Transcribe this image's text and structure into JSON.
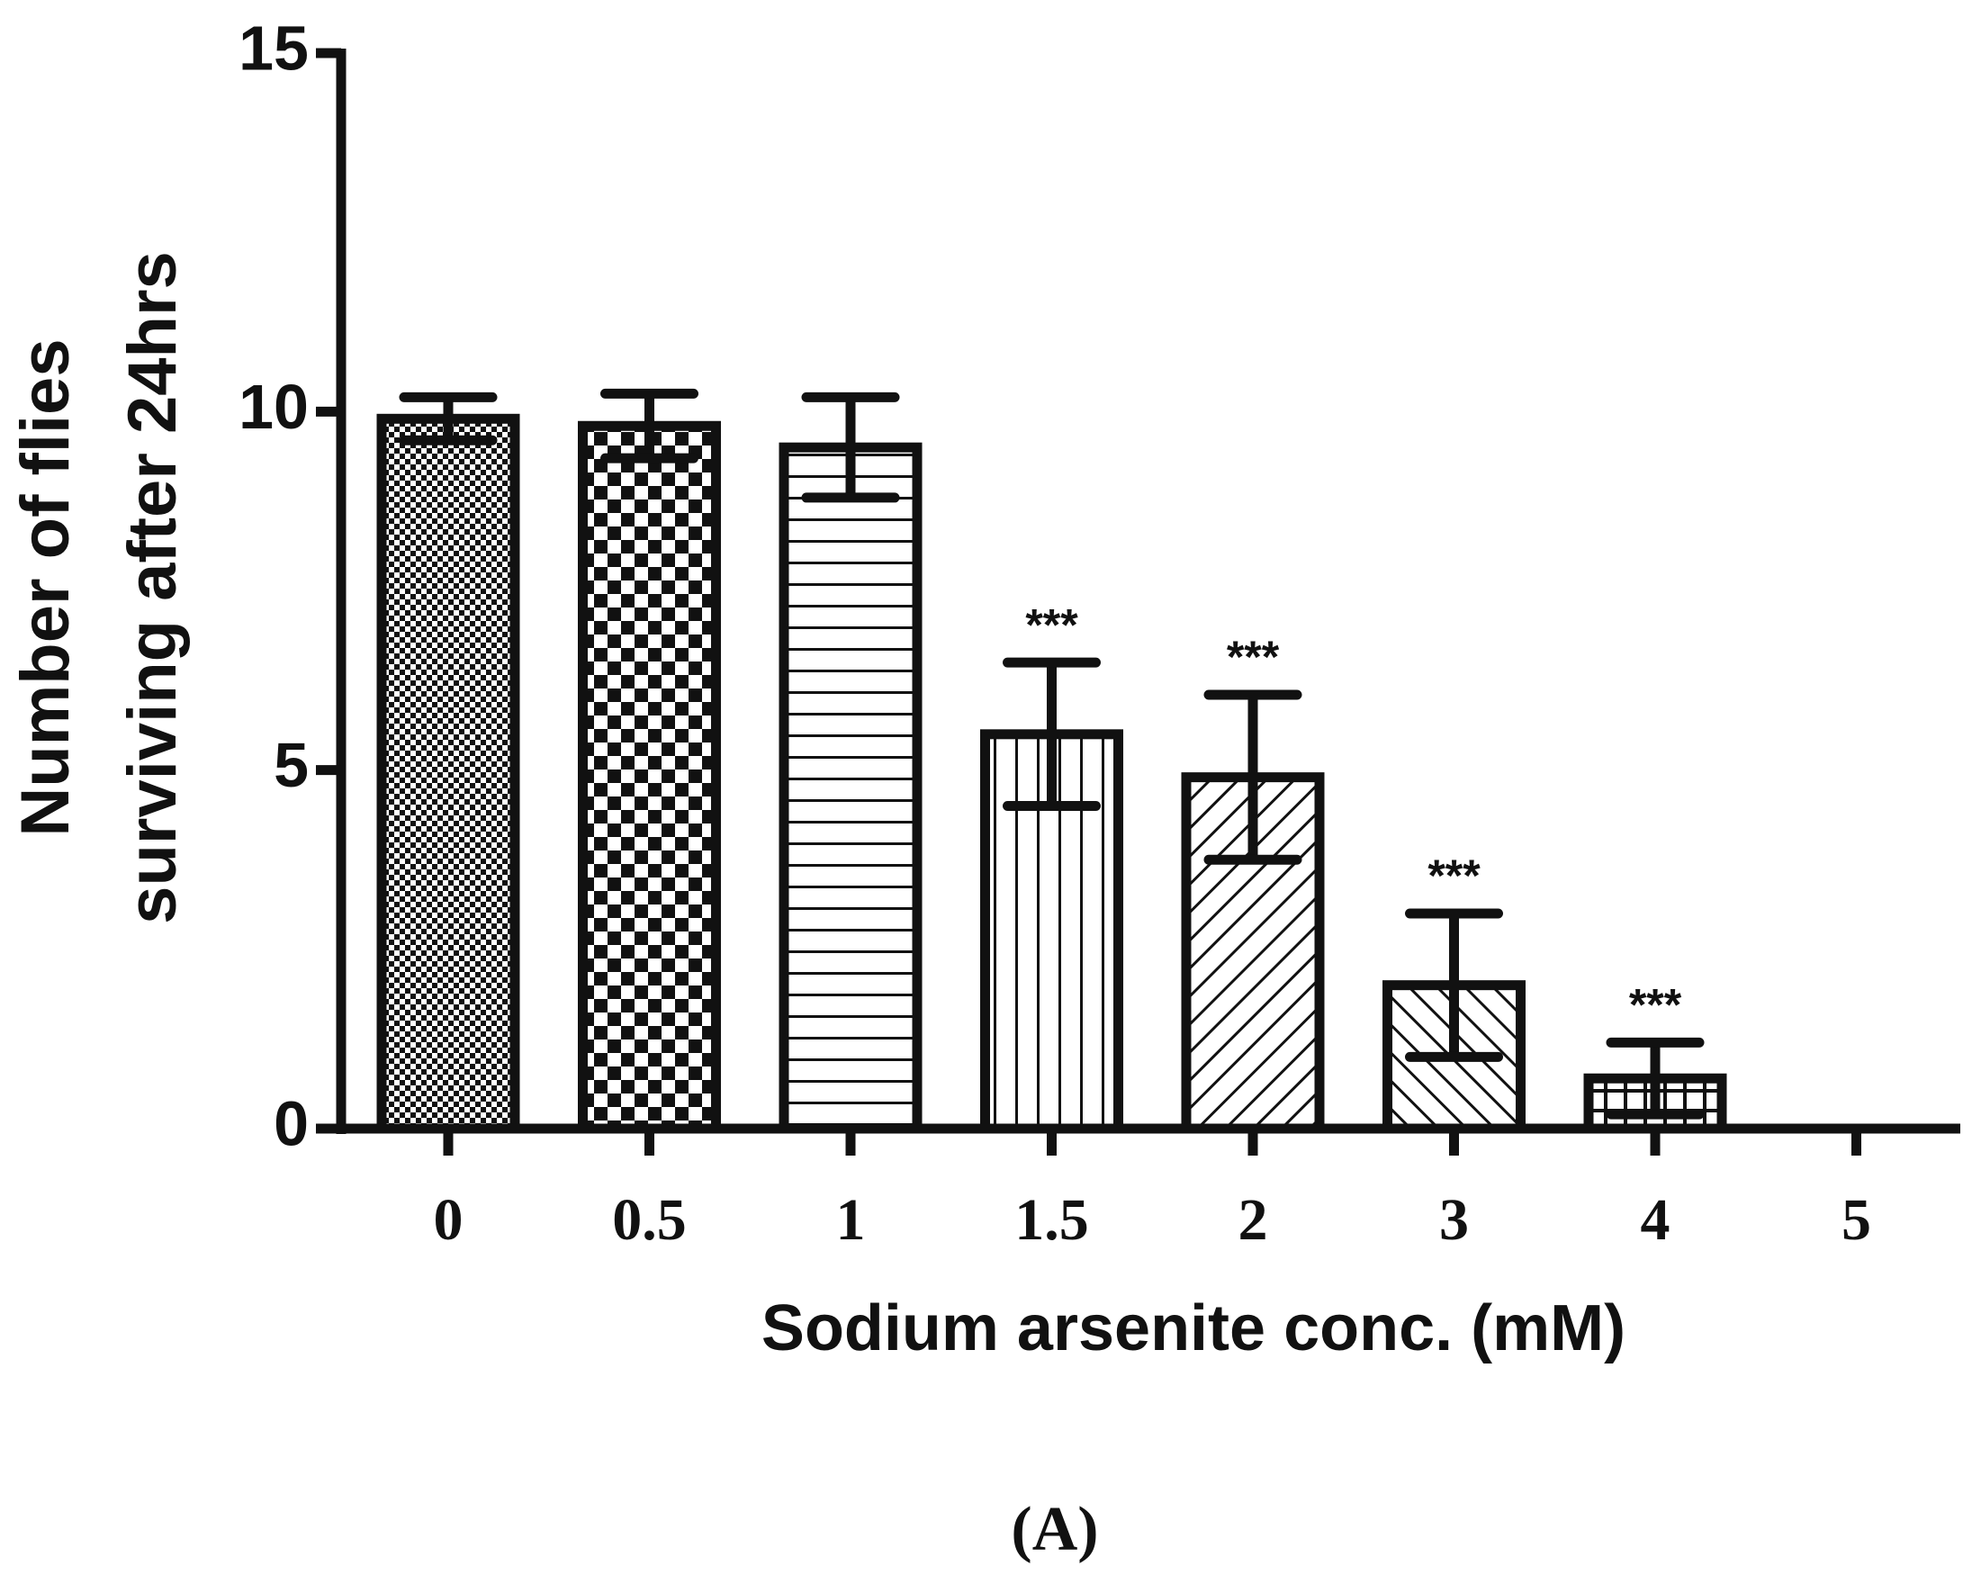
{
  "chart_data": {
    "type": "bar",
    "title": "(A)",
    "xlabel": "Sodium arsenite conc. (mM)",
    "ylabel": [
      "Number of flies",
      "surviving after 24hrs"
    ],
    "categories": [
      "0",
      "0.5",
      "1",
      "1.5",
      "2",
      "3",
      "4",
      "5"
    ],
    "values": [
      9.9,
      9.8,
      9.5,
      5.5,
      4.9,
      2.0,
      0.7,
      0
    ],
    "errors": [
      0.3,
      0.45,
      0.7,
      1.0,
      1.15,
      1.0,
      0.5,
      null
    ],
    "annotations": [
      null,
      null,
      null,
      "***",
      "***",
      "***",
      "***",
      null
    ],
    "patterns": [
      "fine-check",
      "check",
      "hstripes",
      "vstripes",
      "diag-right",
      "diag-left",
      "grid",
      "none"
    ],
    "color": "#111111",
    "ylim": [
      0,
      15
    ],
    "yticks": [
      0,
      5,
      10,
      15
    ],
    "grid": false
  }
}
